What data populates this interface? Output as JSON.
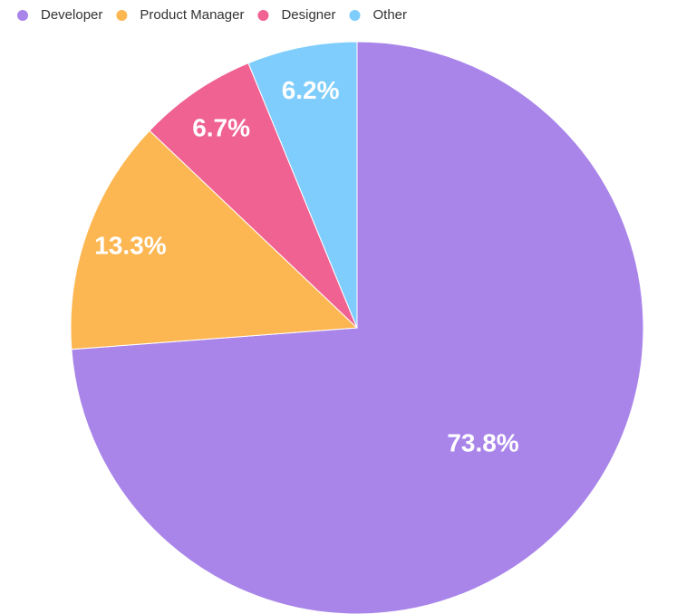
{
  "chart_data": {
    "type": "pie",
    "categories": [
      "Developer",
      "Product Manager",
      "Designer",
      "Other"
    ],
    "values": [
      73.8,
      13.3,
      6.7,
      6.2
    ],
    "value_labels": [
      "73.8%",
      "13.3%",
      "6.7%",
      "6.2%"
    ],
    "colors": [
      "#a985ea",
      "#fdb752",
      "#f06292",
      "#7fcdfc"
    ],
    "legend": "top-left"
  }
}
